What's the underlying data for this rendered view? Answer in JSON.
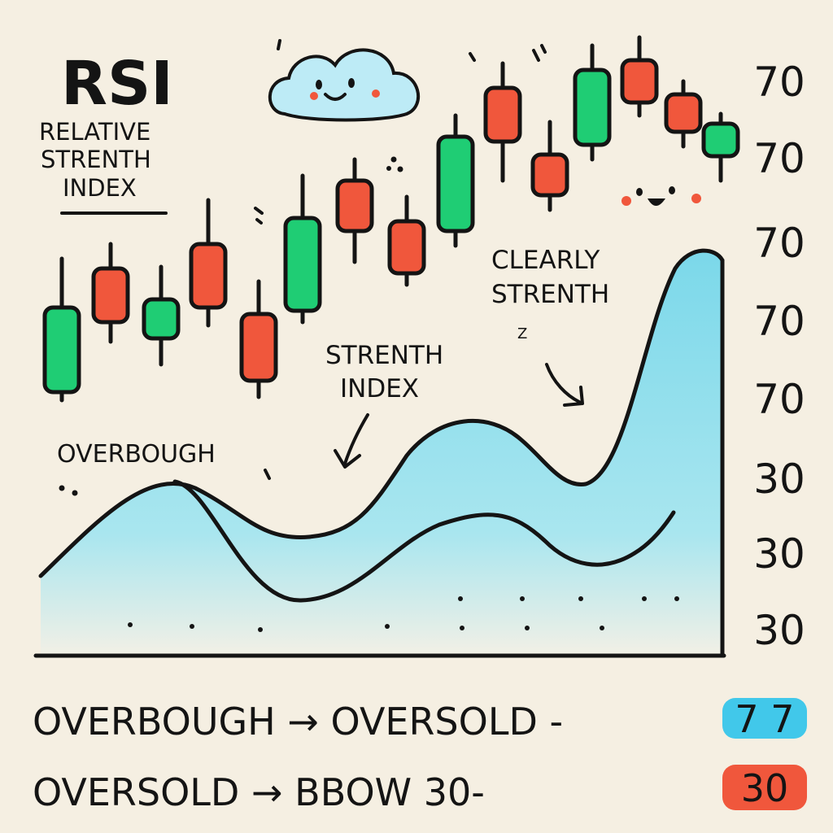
{
  "header": {
    "title": "RSI",
    "subtitle_lines": [
      "RELATIVE",
      "STRENTH",
      "INDEX"
    ]
  },
  "annotations": {
    "overbought": "OVERBOUGH",
    "strength_index_lines": [
      "STRENTH",
      "INDEX"
    ],
    "clearly_strength_lines": [
      "CLEARLY",
      "STRENTH"
    ],
    "sleep_z": "Z"
  },
  "legend": {
    "rows": [
      {
        "label": "OVERBOUGH → OVERSOLD -",
        "badge": "7 7",
        "badge_color": "#41c8ea"
      },
      {
        "label": "OVERSOLD → BBOW 30-",
        "badge": "30",
        "badge_color": "#f0573c"
      }
    ]
  },
  "colors": {
    "bullish": "#1fcd74",
    "bearish": "#f0573c",
    "rsi_fill": "#80dbea",
    "ink": "#141414",
    "background": "#f5efe2",
    "cloud": "#bdebf6"
  },
  "chart_data": {
    "type": "line",
    "y_tick_labels": [
      "70",
      "70",
      "70",
      "70",
      "70",
      "30",
      "30",
      "30"
    ],
    "candles": [
      {
        "direction": "up"
      },
      {
        "direction": "down"
      },
      {
        "direction": "up"
      },
      {
        "direction": "down"
      },
      {
        "direction": "down"
      },
      {
        "direction": "up"
      },
      {
        "direction": "down"
      },
      {
        "direction": "down"
      },
      {
        "direction": "up"
      },
      {
        "direction": "down"
      },
      {
        "direction": "down"
      },
      {
        "direction": "up"
      },
      {
        "direction": "down"
      },
      {
        "direction": "down"
      },
      {
        "direction": "up"
      }
    ],
    "grid": false
  }
}
